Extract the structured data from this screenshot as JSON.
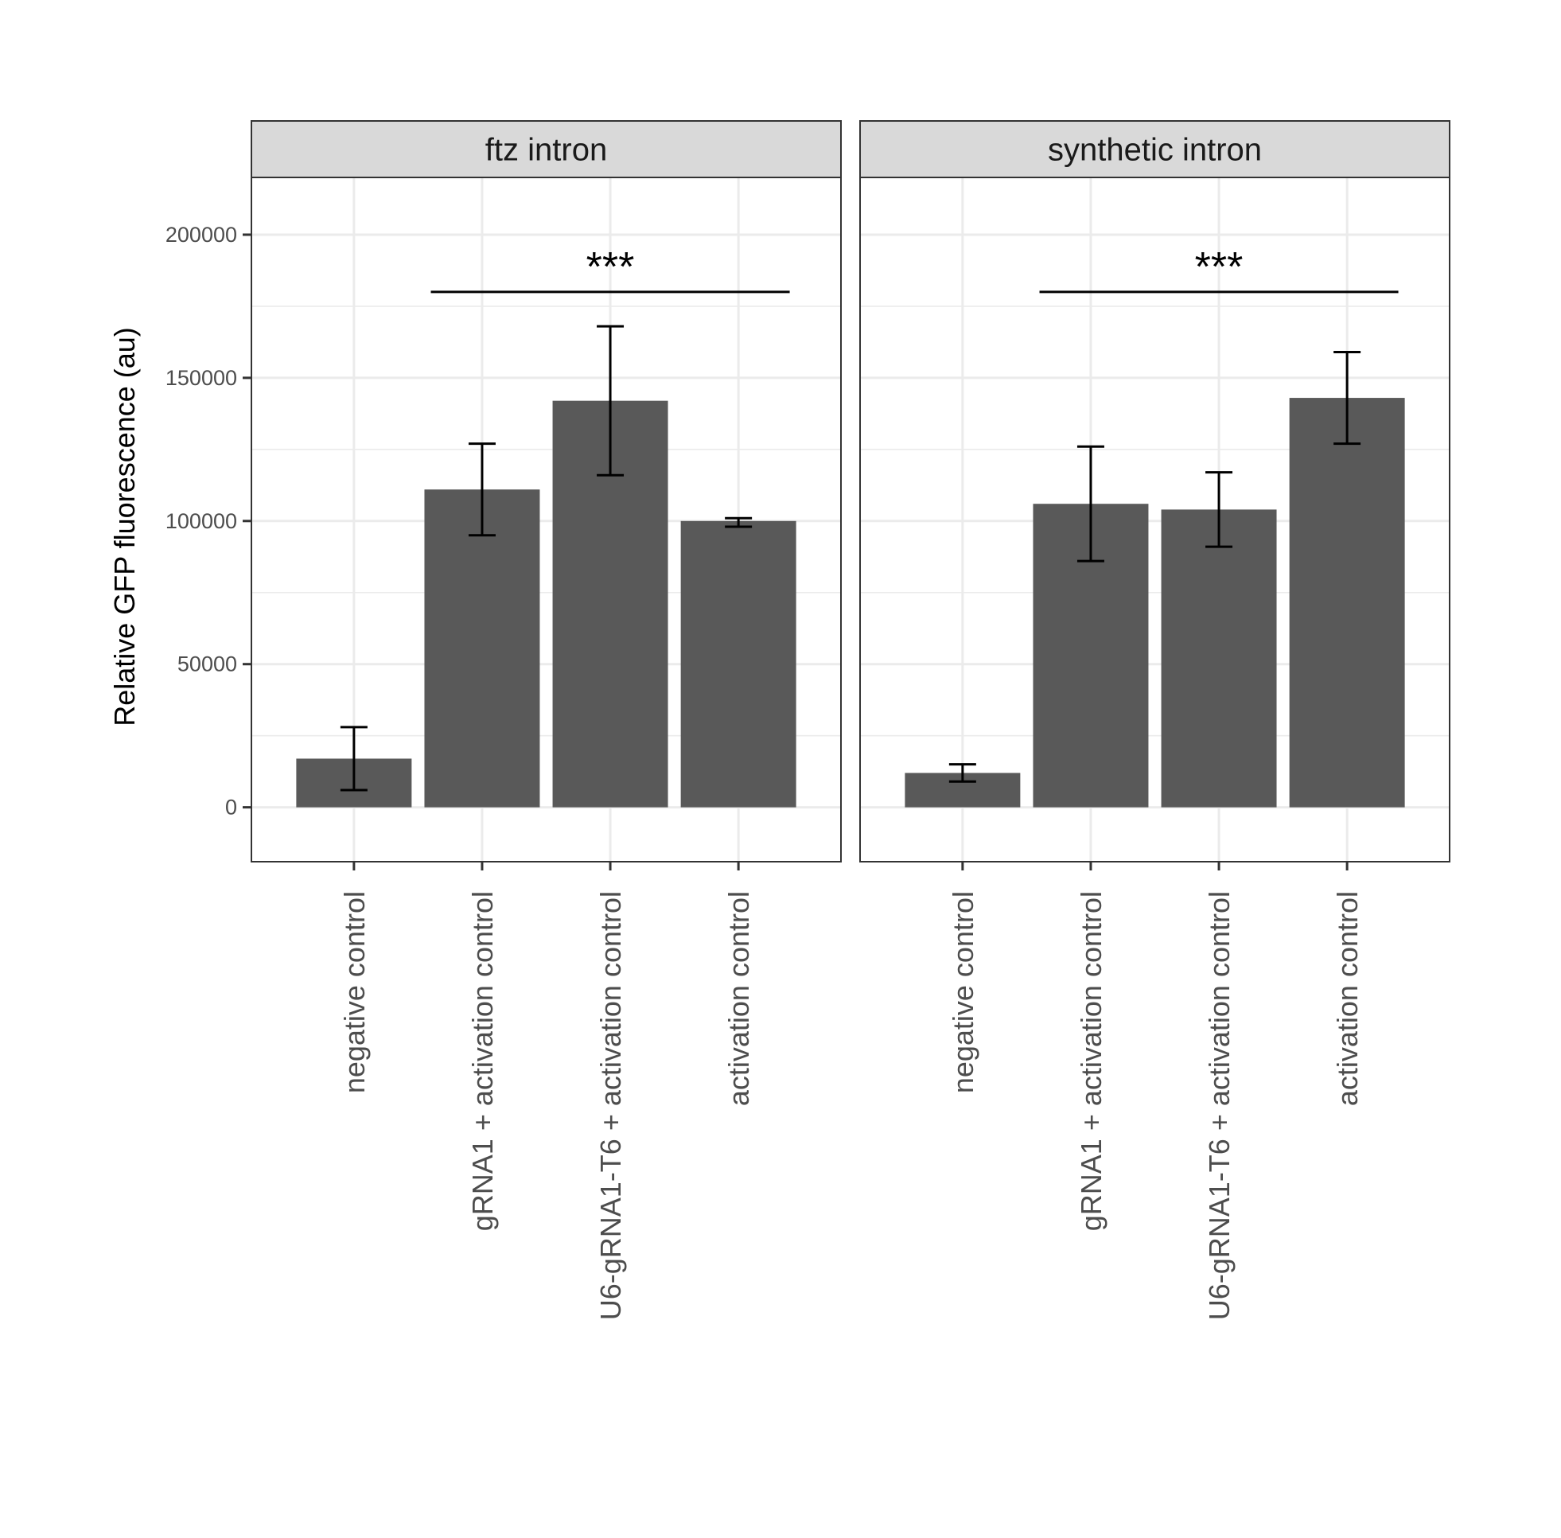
{
  "chart_data": {
    "type": "bar",
    "facet_layout": "two panels side by side sharing y axis",
    "grid": true,
    "legend": "none",
    "colors": {
      "bar": "#595959",
      "panel_border": "#333333",
      "strip_fill": "#d9d9d9",
      "grid": "#ebebeb",
      "error_bar": "#000000"
    },
    "ylabel": "Relative GFP fluorescence (au)",
    "xlabel": "",
    "ylim": [
      -19000,
      220000
    ],
    "yticks": [
      0,
      50000,
      100000,
      150000,
      200000
    ],
    "ytick_labels": [
      "0",
      "50000",
      "100000",
      "150000",
      "200000"
    ],
    "categories": [
      "negative control",
      "gRNA1 + activation control",
      "U6-gRNA1-T6 + activation control",
      "activation control"
    ],
    "panels": [
      {
        "name": "ftz intron",
        "values": [
          17000,
          111000,
          142000,
          100000
        ],
        "error_low": [
          6000,
          95000,
          116000,
          98000
        ],
        "error_high": [
          28000,
          127000,
          168000,
          101000
        ],
        "significance": {
          "label": "***",
          "from_index": 1,
          "to_index": 3,
          "y": 180000
        }
      },
      {
        "name": "synthetic intron",
        "values": [
          12000,
          106000,
          104000,
          143000
        ],
        "error_low": [
          9000,
          86000,
          91000,
          127000
        ],
        "error_high": [
          15000,
          126000,
          117000,
          159000
        ],
        "significance": {
          "label": "***",
          "from_index": 1,
          "to_index": 3,
          "y": 180000
        }
      }
    ]
  }
}
